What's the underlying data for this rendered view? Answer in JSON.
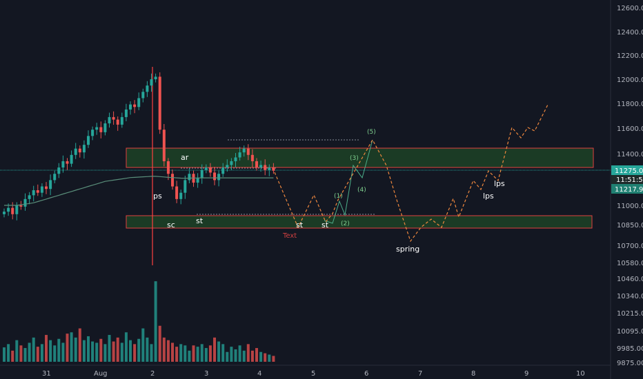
{
  "colors": {
    "background": "#131722",
    "up": "#26a69a",
    "down": "#ef5350",
    "axis_text": "#b2b5be",
    "grid": "#1e222d",
    "zone_fill": "#1b3b25",
    "zone_border": "#e04040",
    "path_up": "#4caf8a",
    "path_projection": "#f0883e",
    "ma_line": "#5a8f7b",
    "annotation": "#ffffff",
    "wave_label": "#7fd08f",
    "text_label": "#d04040",
    "crosshair": "#ff4040",
    "price_tag_main": "#26a69a",
    "price_tag_ma": "#208072"
  },
  "price_axis": {
    "ticks": [
      "12600.00",
      "12400.00",
      "12200.00",
      "12000.00",
      "11800.00",
      "11600.00",
      "11400.00",
      "11000.00",
      "10850.00",
      "10700.00",
      "10580.00",
      "10460.00",
      "10340.00",
      "10215.00",
      "10095.00",
      "9985.00",
      "9875.00"
    ],
    "tag_price": "11275.00",
    "tag_countdown": "11:51:56",
    "tag_ma": "11217.97"
  },
  "time_axis": {
    "labels": [
      "31",
      "Aug",
      "2",
      "3",
      "4",
      "5",
      "6",
      "7",
      "8",
      "9",
      "10"
    ]
  },
  "annotations": {
    "ps": "ps",
    "sc": "sc",
    "ar": "ar",
    "st1": "st",
    "st2": "st",
    "st3": "st",
    "spring": "spring",
    "lps1": "lps",
    "lps2": "lps",
    "text": "Text",
    "w1": "(1)",
    "w2": "(2)",
    "w3": "(3)",
    "w4": "(4)",
    "w5": "(5)"
  },
  "chart_data": {
    "type": "candlestick",
    "title": "",
    "ylim": [
      9875,
      12600
    ],
    "x_labels": [
      "31",
      "Aug",
      "2",
      "3",
      "4",
      "5",
      "6",
      "7",
      "8",
      "9",
      "10"
    ],
    "zones": [
      {
        "low": 11300,
        "high": 11450
      },
      {
        "low": 10860,
        "high": 10920
      }
    ],
    "close_series": [
      10950,
      10980,
      10930,
      11000,
      10990,
      11050,
      11080,
      11120,
      11100,
      11150,
      11130,
      11200,
      11250,
      11300,
      11350,
      11330,
      11400,
      11450,
      11420,
      11480,
      11550,
      11600,
      11620,
      11580,
      11650,
      11700,
      11680,
      11640,
      11700,
      11760,
      11800,
      11780,
      11850,
      11900,
      11950,
      12000,
      12020,
      11600,
      11350,
      11250,
      11150,
      11050,
      11100,
      11200,
      11250,
      11180,
      11220,
      11280,
      11300,
      11260,
      11200,
      11250,
      11300,
      11320,
      11350,
      11380,
      11420,
      11450,
      11400,
      11350,
      11300,
      11320,
      11280,
      11300,
      11275
    ],
    "volume_series": [
      9985,
      10010,
      9960,
      10040,
      10000,
      9980,
      10020,
      10060,
      9990,
      10010,
      10080,
      10040,
      10000,
      10050,
      10020,
      10090,
      10100,
      10060,
      10130,
      10040,
      10070,
      10030,
      10020,
      10050,
      10010,
      10080,
      10030,
      10060,
      10020,
      10100,
      10040,
      10010,
      10050,
      10130,
      10060,
      10010,
      10490,
      10150,
      10060,
      10040,
      10020,
      9990,
      10010,
      10000,
      9960,
      10000,
      9990,
      10010,
      9980,
      10000,
      10060,
      10030,
      10010,
      9950,
      9990,
      9970,
      10000,
      9960,
      10010,
      9960,
      9980,
      9950,
      9940,
      9930,
      9920
    ],
    "ma_series": [
      11000,
      11000,
      11000,
      11000,
      11005,
      11010,
      11015,
      11020,
      11030,
      11040,
      11050,
      11060,
      11070,
      11080,
      11090,
      11100,
      11110,
      11120,
      11130,
      11140,
      11150,
      11160,
      11170,
      11180,
      11190,
      11195,
      11200,
      11205,
      11210,
      11215,
      11220,
      11222,
      11224,
      11226,
      11228,
      11230,
      11230,
      11228,
      11225,
      11222,
      11220,
      11218,
      11216,
      11215,
      11216,
      11217,
      11217,
      11218,
      11218,
      11218,
      11218,
      11218,
      11218,
      11218,
      11218,
      11218,
      11218,
      11218,
      11218,
      11218,
      11218,
      11218,
      11218,
      11218,
      11218
    ],
    "projection_orange": [
      11300,
      11150,
      10900,
      11050,
      10900,
      11100,
      11250,
      11550,
      11250,
      10800,
      10700,
      10900,
      10850,
      10950,
      11050,
      10950,
      11150,
      11250,
      11150,
      11400,
      11600,
      11500,
      11650,
      11800
    ],
    "wave_path": [
      10900,
      10950,
      11050,
      10950,
      11250,
      11300,
      11550
    ]
  }
}
